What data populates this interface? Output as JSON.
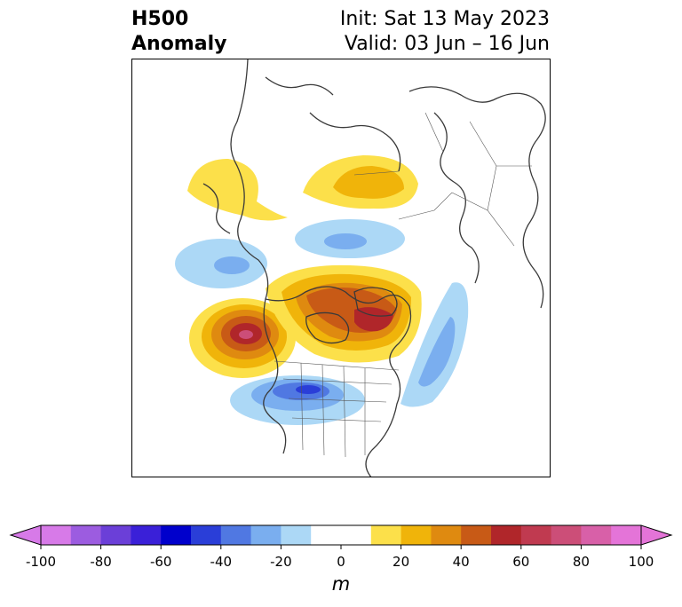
{
  "title": {
    "left_line1": "H500",
    "left_line2": "Anomaly",
    "init": "Init: Sat 13 May 2023",
    "valid": "Valid: 03 Jun – 16 Jun"
  },
  "map": {
    "region": "North America / Arctic polar view",
    "features": [
      "coastlines",
      "country borders",
      "US state borders"
    ]
  },
  "colorbar": {
    "unit": "m",
    "range": [
      -100,
      100
    ],
    "levels": [
      -100,
      -90,
      -80,
      -70,
      -60,
      -50,
      -40,
      -30,
      -20,
      -10,
      10,
      20,
      30,
      40,
      50,
      60,
      70,
      80,
      90,
      100
    ],
    "ticks": [
      "-100",
      "-80",
      "-60",
      "-40",
      "-20",
      "0",
      "20",
      "40",
      "60",
      "80",
      "100"
    ],
    "colors": [
      "#d77ae8",
      "#9c5ce0",
      "#6b3fd8",
      "#3a20d8",
      "#0000cc",
      "#2a3ed8",
      "#5078e2",
      "#7aaeef",
      "#acd8f6",
      "#ffffff",
      "#fce04a",
      "#f0b40a",
      "#df8a10",
      "#c85a16",
      "#b0262a",
      "#c03a50",
      "#cc4e78",
      "#d860a8",
      "#e474d8"
    ]
  },
  "anomaly_centers": [
    {
      "sign": "positive",
      "location": "NE Pacific off British Columbia",
      "approx_m": 80
    },
    {
      "sign": "positive",
      "location": "Hudson Bay / Canadian Arctic",
      "approx_m": 60
    },
    {
      "sign": "positive",
      "location": "Alaska / Bering region",
      "approx_m": 20
    },
    {
      "sign": "positive",
      "location": "Northern Siberia / Kara Sea",
      "approx_m": 30
    },
    {
      "sign": "negative",
      "location": "Central-Western United States",
      "approx_m": -50
    },
    {
      "sign": "negative",
      "location": "Western Atlantic off Newfoundland",
      "approx_m": -30
    },
    {
      "sign": "negative",
      "location": "Gulf of Alaska / N Pacific",
      "approx_m": -30
    },
    {
      "sign": "negative",
      "location": "Central Arctic Ocean",
      "approx_m": -30
    }
  ]
}
